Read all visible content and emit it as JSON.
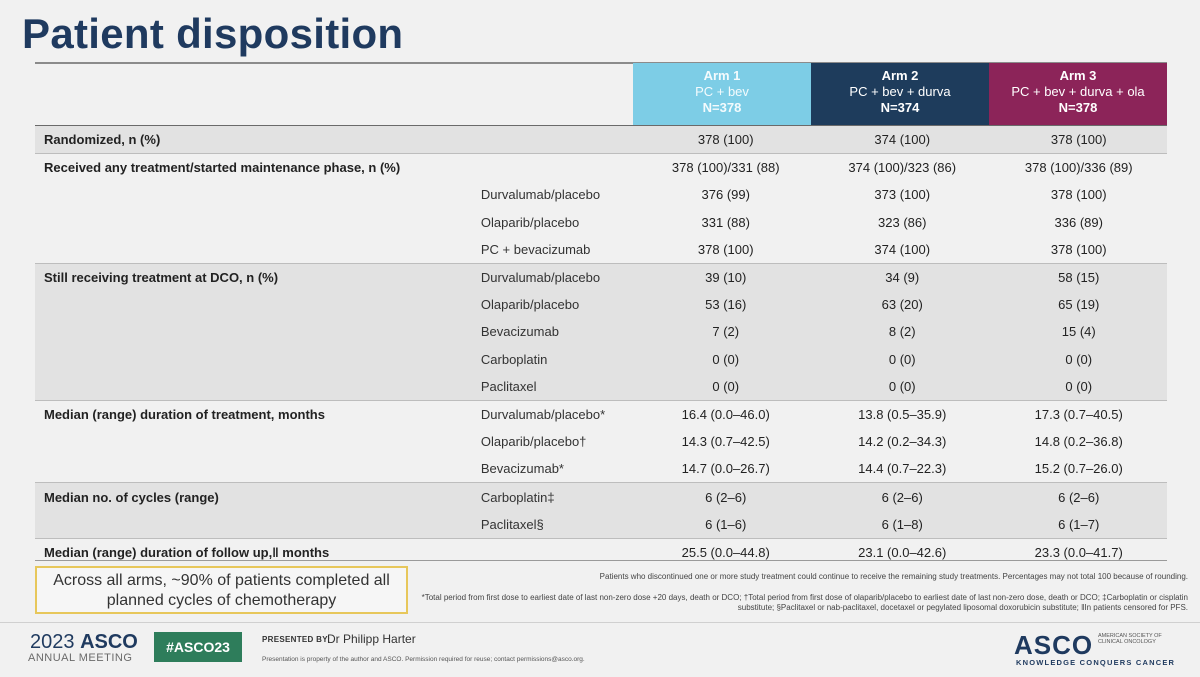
{
  "title": "Patient disposition",
  "arms": [
    {
      "name": "Arm 1",
      "regimen": "PC + bev",
      "n": "N=378"
    },
    {
      "name": "Arm 2",
      "regimen": "PC + bev + durva",
      "n": "N=374"
    },
    {
      "name": "Arm 3",
      "regimen": "PC + bev + durva + ola",
      "n": "N=378"
    }
  ],
  "rows": [
    {
      "label": "Randomized, n (%)",
      "sub": "",
      "v": [
        "378 (100)",
        "374 (100)",
        "378 (100)"
      ]
    },
    {
      "label": "Received any treatment/started maintenance phase, n (%)",
      "sub": "",
      "v": [
        "378 (100)/331 (88)",
        "374 (100)/323 (86)",
        "378 (100)/336 (89)"
      ]
    },
    {
      "label": "",
      "sub": "Durvalumab/placebo",
      "v": [
        "376 (99)",
        "373 (100)",
        "378 (100)"
      ]
    },
    {
      "label": "",
      "sub": "Olaparib/placebo",
      "v": [
        "331 (88)",
        "323 (86)",
        "336 (89)"
      ]
    },
    {
      "label": "",
      "sub": "PC + bevacizumab",
      "v": [
        "378 (100)",
        "374 (100)",
        "378 (100)"
      ]
    },
    {
      "label": "Still receiving treatment at DCO, n (%)",
      "sub": "Durvalumab/placebo",
      "v": [
        "39 (10)",
        "34 (9)",
        "58 (15)"
      ]
    },
    {
      "label": "",
      "sub": "Olaparib/placebo",
      "v": [
        "53 (16)",
        "63 (20)",
        "65 (19)"
      ]
    },
    {
      "label": "",
      "sub": "Bevacizumab",
      "v": [
        "7 (2)",
        "8 (2)",
        "15 (4)"
      ]
    },
    {
      "label": "",
      "sub": "Carboplatin",
      "v": [
        "0 (0)",
        "0 (0)",
        "0 (0)"
      ]
    },
    {
      "label": "",
      "sub": "Paclitaxel",
      "v": [
        "0 (0)",
        "0 (0)",
        "0 (0)"
      ]
    },
    {
      "label": "Median (range) duration of treatment, months",
      "sub": "Durvalumab/placebo*",
      "v": [
        "16.4 (0.0–46.0)",
        "13.8 (0.5–35.9)",
        "17.3 (0.7–40.5)"
      ]
    },
    {
      "label": "",
      "sub": "Olaparib/placebo†",
      "v": [
        "14.3 (0.7–42.5)",
        "14.2 (0.2–34.3)",
        "14.8 (0.2–36.8)"
      ]
    },
    {
      "label": "",
      "sub": "Bevacizumab*",
      "v": [
        "14.7 (0.0–26.7)",
        "14.4 (0.7–22.3)",
        "15.2 (0.7–26.0)"
      ]
    },
    {
      "label": "Median no. of cycles (range)",
      "sub": "Carboplatin‡",
      "v": [
        "6 (2–6)",
        "6 (2–6)",
        "6 (2–6)"
      ]
    },
    {
      "label": "",
      "sub": "Paclitaxel§",
      "v": [
        "6 (1–6)",
        "6 (1–8)",
        "6 (1–7)"
      ]
    },
    {
      "label": "Median (range) duration of follow up,‖ months",
      "sub": "",
      "v": [
        "25.5 (0.0–44.8)",
        "23.1 (0.0–42.6)",
        "23.3 (0.0–41.7)"
      ]
    }
  ],
  "callout": "Across all arms, ~90% of patients completed all planned cycles of chemotherapy",
  "footnote_top": "Patients who discontinued one or more study treatment could continue to receive the remaining study treatments. Percentages may not total 100 because of rounding.",
  "footnote_bottom": "*Total period from first dose to earliest date of last non-zero dose +20 days, death or DCO; †Total period from first dose of olaparib/placebo to earliest date of last non-zero dose, death or DCO; ‡Carboplatin or cisplatin substitute; §Paclitaxel or nab-paclitaxel, docetaxel or pegylated liposomal doxorubicin substitute; ‖In patients censored for PFS.",
  "footer": {
    "year": "2023",
    "org": "ASCO",
    "meeting": "ANNUAL MEETING",
    "hashtag": "#ASCO23",
    "presented_by": "PRESENTED BY:",
    "presenter": "Dr Philipp Harter",
    "property": "Presentation is property of the author and ASCO. Permission required for reuse; contact permissions@asco.org.",
    "logo": "ASCO",
    "society": "American Society of Clinical Oncology",
    "tagline": "KNOWLEDGE CONQUERS CANCER"
  }
}
